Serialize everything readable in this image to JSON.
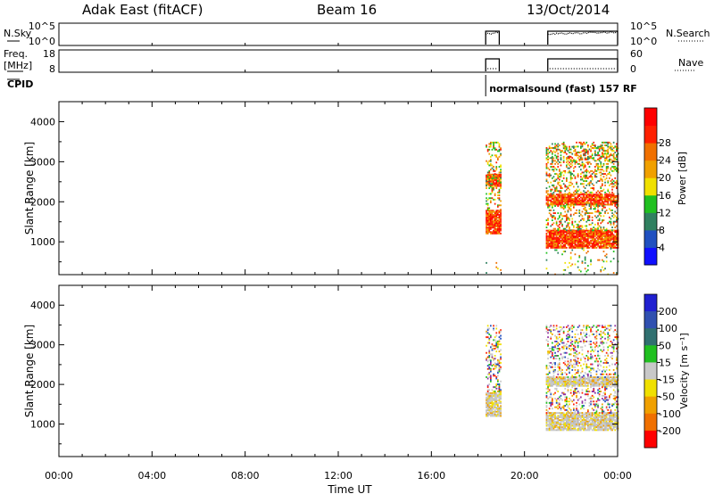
{
  "header": {
    "station": "Adak East (fitACF)",
    "beam": "Beam 16",
    "date": "13/Oct/2014"
  },
  "chart_data": [
    {
      "type": "line",
      "panel": "noise",
      "left_labels": [
        "N.Sky"
      ],
      "right_labels": [
        "N.Search"
      ],
      "yticks": [
        "10^5",
        "10^0"
      ],
      "segments": [
        {
          "x": [
            "18:20",
            "18:55"
          ],
          "level": "high"
        },
        {
          "x": [
            "21:00",
            "24:00"
          ],
          "level": "high"
        }
      ]
    },
    {
      "type": "line",
      "panel": "frequency",
      "left_labels": [
        "Freq.",
        "[MHz]"
      ],
      "right_labels": [
        "Nave"
      ],
      "yticks_left": [
        18,
        8
      ],
      "yticks_right": [
        60,
        0
      ],
      "segments": [
        {
          "x": [
            "18:20",
            "18:55"
          ]
        },
        {
          "x": [
            "21:00",
            "24:00"
          ]
        }
      ]
    },
    {
      "type": "heatmap",
      "panel": "power",
      "ylabel": "Slant Range [km]",
      "yticks": [
        1000,
        2000,
        3000,
        4000
      ],
      "ylim": [
        180,
        4500
      ],
      "colorbar": {
        "label": "Power [dB]",
        "ticks": [
          4,
          8,
          12,
          16,
          20,
          24,
          28
        ],
        "colors": [
          "#1010ff",
          "#2050c0",
          "#308060",
          "#20c020",
          "#f0e000",
          "#f0a000",
          "#f07000",
          "#ff2000",
          "#ff0000"
        ]
      },
      "blocks": [
        {
          "t": [
            "18:20",
            "19:00"
          ],
          "ranges": [
            [
              1200,
              1800,
              "high"
            ],
            [
              2400,
              2700,
              "high"
            ],
            [
              1800,
              3500,
              "med"
            ],
            [
              200,
              600,
              "low"
            ]
          ]
        },
        {
          "t": [
            "20:55",
            "24:00"
          ],
          "ranges": [
            [
              850,
              1300,
              "high"
            ],
            [
              1950,
              2200,
              "high"
            ],
            [
              1300,
              1950,
              "med"
            ],
            [
              2200,
              3500,
              "med"
            ],
            [
              3000,
              3400,
              "med"
            ],
            [
              200,
              850,
              "low"
            ]
          ]
        }
      ]
    },
    {
      "type": "heatmap",
      "panel": "velocity",
      "ylabel": "Slant Range [km]",
      "yticks": [
        1000,
        2000,
        3000,
        4000
      ],
      "ylim": [
        180,
        4500
      ],
      "colorbar": {
        "label": "Velocity [m s⁻¹]",
        "ticks": [
          200,
          100,
          50,
          15,
          -15,
          -50,
          -100,
          -200
        ],
        "colors": [
          "#2020d0",
          "#3050b0",
          "#307070",
          "#20c020",
          "#c8c8c8",
          "#f0e000",
          "#f0a000",
          "#f07000",
          "#ff0000"
        ]
      },
      "blocks": [
        {
          "t": [
            "18:20",
            "19:00"
          ],
          "ranges": [
            [
              1200,
              1800,
              "gray"
            ],
            [
              2400,
              2700,
              "mix"
            ],
            [
              1800,
              3500,
              "mix"
            ]
          ]
        },
        {
          "t": [
            "20:55",
            "24:00"
          ],
          "ranges": [
            [
              850,
              1300,
              "gray"
            ],
            [
              1950,
              2200,
              "gray"
            ],
            [
              1300,
              1950,
              "mix"
            ],
            [
              2200,
              3500,
              "mix"
            ]
          ]
        }
      ]
    }
  ],
  "cpid": {
    "label": "CPID",
    "entries": [
      {
        "start": "18:20",
        "text": "normalsound (fast) 157 RF"
      }
    ]
  },
  "xaxis": {
    "label": "Time UT",
    "ticks": [
      "00:00",
      "04:00",
      "08:00",
      "12:00",
      "16:00",
      "20:00",
      "00:00"
    ]
  }
}
